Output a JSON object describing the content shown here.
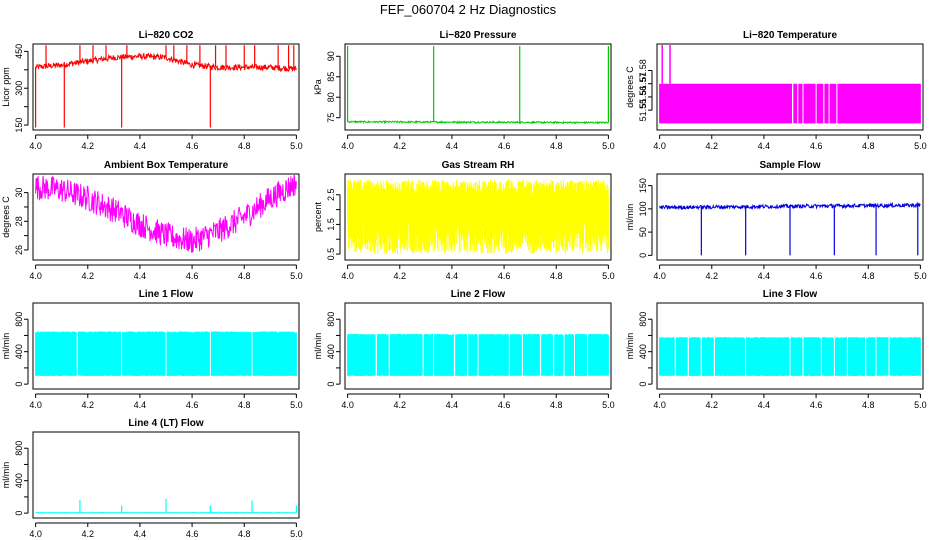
{
  "title": "FEF_060704  2 Hz Diagnostics",
  "chart_data": [
    {
      "id": "co2",
      "type": "line",
      "title": "Li−820 CO2",
      "ylabel": "Licor ppm",
      "color": "#ff0000",
      "xlim": [
        3.99,
        5.01
      ],
      "ylim": [
        130,
        480
      ],
      "xticks": [
        "4.0",
        "4.2",
        "4.4",
        "4.6",
        "4.8",
        "5.0"
      ],
      "xtick_values": [
        4.0,
        4.2,
        4.4,
        4.6,
        4.8,
        5.0
      ],
      "yticks": [
        "150",
        "300",
        "450"
      ],
      "ytick_values": [
        150,
        300,
        450
      ],
      "yminor": [
        225,
        375
      ],
      "series": [
        {
          "name": "CO2",
          "x": [
            4.0,
            4.1,
            4.2,
            4.3,
            4.4,
            4.5,
            4.6,
            4.7,
            4.8,
            4.9,
            5.0
          ],
          "y": [
            385,
            395,
            410,
            425,
            430,
            425,
            395,
            385,
            385,
            385,
            378
          ]
        }
      ],
      "spikes_up": [
        4.04,
        4.17,
        4.22,
        4.27,
        4.35,
        4.5,
        4.53,
        4.58,
        4.63,
        4.69,
        4.73,
        4.8,
        4.84,
        4.93,
        4.97,
        4.99
      ],
      "spikes_down": [
        4.0,
        4.11,
        4.33,
        4.67
      ],
      "noise": 12
    },
    {
      "id": "pressure",
      "type": "line",
      "title": "Li−820 Pressure",
      "ylabel": "kPa",
      "color": "#00cc00",
      "xlim": [
        3.99,
        5.01
      ],
      "ylim": [
        72,
        93
      ],
      "xticks": [
        "4.0",
        "4.2",
        "4.4",
        "4.6",
        "4.8",
        "5.0"
      ],
      "xtick_values": [
        4.0,
        4.2,
        4.4,
        4.6,
        4.8,
        5.0
      ],
      "yticks": [
        "75",
        "80",
        "85",
        "90"
      ],
      "ytick_values": [
        75,
        80,
        85,
        90
      ],
      "series": [
        {
          "name": "Pressure",
          "x": [
            4.0,
            5.0
          ],
          "y": [
            74,
            73.8
          ]
        }
      ],
      "spikes_up": [
        4.0,
        4.33,
        4.66,
        5.0
      ],
      "spike_top": 92.5,
      "noise": 0.2
    },
    {
      "id": "temperature",
      "type": "line",
      "title": "Li−820 Temperature",
      "ylabel": "degrees C",
      "color": "#ff00ff",
      "xlim": [
        3.99,
        5.01
      ],
      "ylim": [
        51.535,
        51.6
      ],
      "xticks": [
        "4.0",
        "4.2",
        "4.4",
        "4.6",
        "4.8",
        "5.0"
      ],
      "xtick_values": [
        4.0,
        4.2,
        4.4,
        4.6,
        4.8,
        5.0
      ],
      "yticks": [
        "51.55",
        "51.56",
        "51.57",
        "51.58"
      ],
      "ytick_values": [
        51.55,
        51.56,
        51.57,
        51.58
      ],
      "series": [
        {
          "name": "Temperature",
          "x": [
            4.0,
            5.0
          ],
          "y": [
            51.54,
            51.57
          ]
        }
      ],
      "spikes_up": [
        4.01,
        4.04
      ],
      "gaps": [
        4.51,
        4.53,
        4.55,
        4.6,
        4.63,
        4.65,
        4.68
      ]
    },
    {
      "id": "ambient",
      "type": "line",
      "title": "Ambient Box Temperature",
      "ylabel": "degrees C",
      "color": "#ff00ff",
      "xlim": [
        3.99,
        5.01
      ],
      "ylim": [
        25.3,
        31.3
      ],
      "xticks": [
        "4.0",
        "4.2",
        "4.4",
        "4.6",
        "4.8",
        "5.0"
      ],
      "xtick_values": [
        4.0,
        4.2,
        4.4,
        4.6,
        4.8,
        5.0
      ],
      "yticks": [
        "26",
        "28",
        "30"
      ],
      "ytick_values": [
        26,
        28,
        30
      ],
      "yminor": [
        27,
        29
      ],
      "series": [
        {
          "name": "Ambient",
          "x": [
            4.0,
            4.1,
            4.2,
            4.3,
            4.4,
            4.5,
            4.6,
            4.7,
            4.8,
            4.9,
            5.0
          ],
          "y": [
            30.4,
            30.2,
            29.6,
            28.8,
            27.8,
            27.0,
            26.6,
            27.3,
            28.3,
            29.6,
            30.7
          ]
        }
      ],
      "noise": 0.9
    },
    {
      "id": "rh",
      "type": "line",
      "title": "Gas Stream RH",
      "ylabel": "percent",
      "color": "#ffff00",
      "xlim": [
        3.99,
        5.01
      ],
      "ylim": [
        0.3,
        3.2
      ],
      "xticks": [
        "4.0",
        "4.2",
        "4.4",
        "4.6",
        "4.8",
        "5.0"
      ],
      "xtick_values": [
        4.0,
        4.2,
        4.4,
        4.6,
        4.8,
        5.0
      ],
      "yticks": [
        "0.5",
        "1.5",
        "2.5"
      ],
      "ytick_values": [
        0.5,
        1.5,
        2.5
      ],
      "yminor": [
        1.0,
        2.0
      ],
      "band": [
        0.5,
        3.0
      ],
      "dense": true
    },
    {
      "id": "sample",
      "type": "line",
      "title": "Sample Flow",
      "ylabel": "ml/min",
      "color": "#0000dd",
      "xlim": [
        3.99,
        5.01
      ],
      "ylim": [
        -10,
        175
      ],
      "xticks": [
        "4.0",
        "4.2",
        "4.4",
        "4.6",
        "4.8",
        "5.0"
      ],
      "xtick_values": [
        4.0,
        4.2,
        4.4,
        4.6,
        4.8,
        5.0
      ],
      "yticks": [
        "0",
        "50",
        "100",
        "150"
      ],
      "ytick_values": [
        0,
        50,
        100,
        150
      ],
      "series": [
        {
          "name": "Sample",
          "x": [
            4.0,
            5.0
          ],
          "y": [
            103,
            108
          ]
        }
      ],
      "spikes_down": [
        4.16,
        4.33,
        4.5,
        4.67,
        4.83,
        4.99
      ],
      "spike_bottom": 0,
      "noise": 4
    },
    {
      "id": "line1",
      "type": "line",
      "title": "Line 1 Flow",
      "ylabel": "ml/min",
      "color": "#00ffff",
      "xlim": [
        3.99,
        5.01
      ],
      "ylim": [
        -60,
        1000
      ],
      "xticks": [
        "4.0",
        "4.2",
        "4.4",
        "4.6",
        "4.8",
        "5.0"
      ],
      "xtick_values": [
        4.0,
        4.2,
        4.4,
        4.6,
        4.8,
        5.0
      ],
      "yticks": [
        "0",
        "400",
        "800"
      ],
      "ytick_values": [
        0,
        400,
        800
      ],
      "yminor": [
        200,
        600
      ],
      "band": [
        100,
        650
      ],
      "dense": true,
      "gaps": [
        4.16,
        4.33,
        4.5,
        4.67,
        4.83
      ]
    },
    {
      "id": "line2",
      "type": "line",
      "title": "Line 2 Flow",
      "ylabel": "ml/min",
      "color": "#00ffff",
      "xlim": [
        3.99,
        5.01
      ],
      "ylim": [
        -60,
        1000
      ],
      "xticks": [
        "4.0",
        "4.2",
        "4.4",
        "4.6",
        "4.8",
        "5.0"
      ],
      "xtick_values": [
        4.0,
        4.2,
        4.4,
        4.6,
        4.8,
        5.0
      ],
      "yticks": [
        "0",
        "400",
        "800"
      ],
      "ytick_values": [
        0,
        400,
        800
      ],
      "yminor": [
        200,
        600
      ],
      "band": [
        100,
        620
      ],
      "dense": true,
      "gaps": [
        4.11,
        4.16,
        4.29,
        4.33,
        4.41,
        4.46,
        4.5,
        4.62,
        4.67,
        4.74,
        4.79,
        4.83,
        4.87,
        4.92
      ]
    },
    {
      "id": "line3",
      "type": "line",
      "title": "Line 3 Flow",
      "ylabel": "ml/min",
      "color": "#00ffff",
      "xlim": [
        3.99,
        5.01
      ],
      "ylim": [
        -60,
        1000
      ],
      "xticks": [
        "4.0",
        "4.2",
        "4.4",
        "4.6",
        "4.8",
        "5.0"
      ],
      "xtick_values": [
        4.0,
        4.2,
        4.4,
        4.6,
        4.8,
        5.0
      ],
      "yticks": [
        "0",
        "400",
        "800"
      ],
      "ytick_values": [
        0,
        400,
        800
      ],
      "yminor": [
        200,
        600
      ],
      "band": [
        100,
        580
      ],
      "dense": true,
      "gaps": [
        4.06,
        4.11,
        4.16,
        4.21,
        4.33,
        4.5,
        4.55,
        4.62,
        4.67,
        4.72,
        4.79,
        4.83,
        4.88
      ]
    },
    {
      "id": "line4",
      "type": "line",
      "title": "Line 4 (LT) Flow",
      "ylabel": "ml/min",
      "color": "#00ffff",
      "xlim": [
        3.99,
        5.01
      ],
      "ylim": [
        -60,
        1000
      ],
      "xticks": [
        "4.0",
        "4.2",
        "4.4",
        "4.6",
        "4.8",
        "5.0"
      ],
      "xtick_values": [
        4.0,
        4.2,
        4.4,
        4.6,
        4.8,
        5.0
      ],
      "yticks": [
        "0",
        "400",
        "800"
      ],
      "ytick_values": [
        0,
        400,
        800
      ],
      "yminor": [
        200,
        600
      ],
      "series": [
        {
          "name": "Line 4",
          "x": [
            4.0,
            5.0
          ],
          "y": [
            5,
            5
          ]
        }
      ],
      "spikes_up": [
        4.17,
        4.33,
        4.5,
        4.67,
        4.83,
        5.0
      ],
      "spike_heights": [
        160,
        90,
        170,
        90,
        150,
        90
      ],
      "noise": 3
    }
  ]
}
